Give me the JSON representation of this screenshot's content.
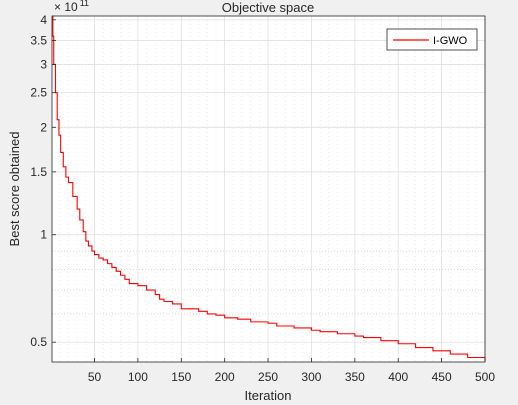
{
  "chart_data": {
    "type": "line",
    "title": "Objective space",
    "xlabel": "Iteration",
    "ylabel": "Best score obtained",
    "xlim": [
      1,
      500
    ],
    "ylim": [
      0.44,
      4.1
    ],
    "yscale": "log",
    "y_multiplier": {
      "base": "× 10",
      "exponent": "11"
    },
    "grid": true,
    "minor_grid": true,
    "legend": {
      "position": "top-right",
      "entries": [
        "I-GWO"
      ]
    },
    "xticks": [
      50,
      100,
      150,
      200,
      250,
      300,
      350,
      400,
      450,
      500
    ],
    "xtick_labels": [
      "50",
      "100",
      "150",
      "200",
      "250",
      "300",
      "350",
      "400",
      "450",
      "500"
    ],
    "yticks": [
      0.5,
      1,
      1.5,
      2,
      2.5,
      3,
      3.5,
      4
    ],
    "ytick_labels": [
      "0.5",
      "1",
      "1.5",
      "2",
      "2.5",
      "3",
      "3.5",
      "4"
    ],
    "series": [
      {
        "name": "I-GWO",
        "color": "#ff0000",
        "step": true,
        "x": [
          1,
          2,
          3,
          5,
          7,
          9,
          11,
          14,
          17,
          20,
          25,
          30,
          33,
          37,
          40,
          43,
          47,
          50,
          55,
          60,
          65,
          70,
          75,
          80,
          85,
          90,
          100,
          110,
          120,
          125,
          130,
          140,
          150,
          170,
          180,
          190,
          200,
          215,
          230,
          250,
          260,
          280,
          300,
          310,
          330,
          350,
          360,
          380,
          400,
          420,
          440,
          460,
          480,
          500
        ],
        "y": [
          4.1,
          3.6,
          3.0,
          2.5,
          2.1,
          1.9,
          1.7,
          1.55,
          1.45,
          1.4,
          1.28,
          1.18,
          1.1,
          1.02,
          0.96,
          0.93,
          0.9,
          0.88,
          0.86,
          0.85,
          0.83,
          0.81,
          0.79,
          0.77,
          0.75,
          0.73,
          0.72,
          0.7,
          0.68,
          0.66,
          0.65,
          0.64,
          0.62,
          0.61,
          0.6,
          0.595,
          0.585,
          0.58,
          0.57,
          0.565,
          0.555,
          0.548,
          0.54,
          0.535,
          0.528,
          0.52,
          0.515,
          0.505,
          0.495,
          0.483,
          0.473,
          0.463,
          0.453,
          0.445
        ]
      }
    ]
  }
}
